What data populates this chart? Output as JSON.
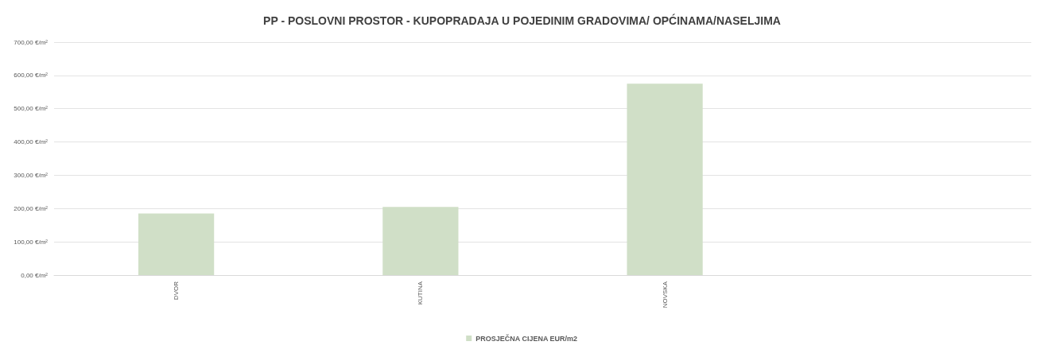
{
  "chart_data": {
    "type": "bar",
    "title": "PP - POSLOVNI PROSTOR - KUPOPRADAJA U POJEDINIM GRADOVIMA/ OPĆINAMA/NASELJIMA",
    "categories": [
      "DVOR",
      "KUTINA",
      "NOVSKA",
      null
    ],
    "series": [
      {
        "name": "PROSJEČNA CIJENA EUR/m2",
        "color": "#d0dfc7",
        "values": [
          185,
          205,
          575,
          null
        ]
      }
    ],
    "ylim": [
      0,
      700
    ],
    "yticks": [
      {
        "value": 0,
        "label": "0,00 €/m²"
      },
      {
        "value": 100,
        "label": "100,00 €/m²"
      },
      {
        "value": 200,
        "label": "200,00 €/m²"
      },
      {
        "value": 300,
        "label": "300,00 €/m²"
      },
      {
        "value": 400,
        "label": "400,00 €/m²"
      },
      {
        "value": 500,
        "label": "500,00 €/m²"
      },
      {
        "value": 600,
        "label": "600,00 €/m²"
      },
      {
        "value": 700,
        "label": "700,00 €/m²"
      }
    ],
    "grid": "y",
    "legend": "bottom"
  }
}
